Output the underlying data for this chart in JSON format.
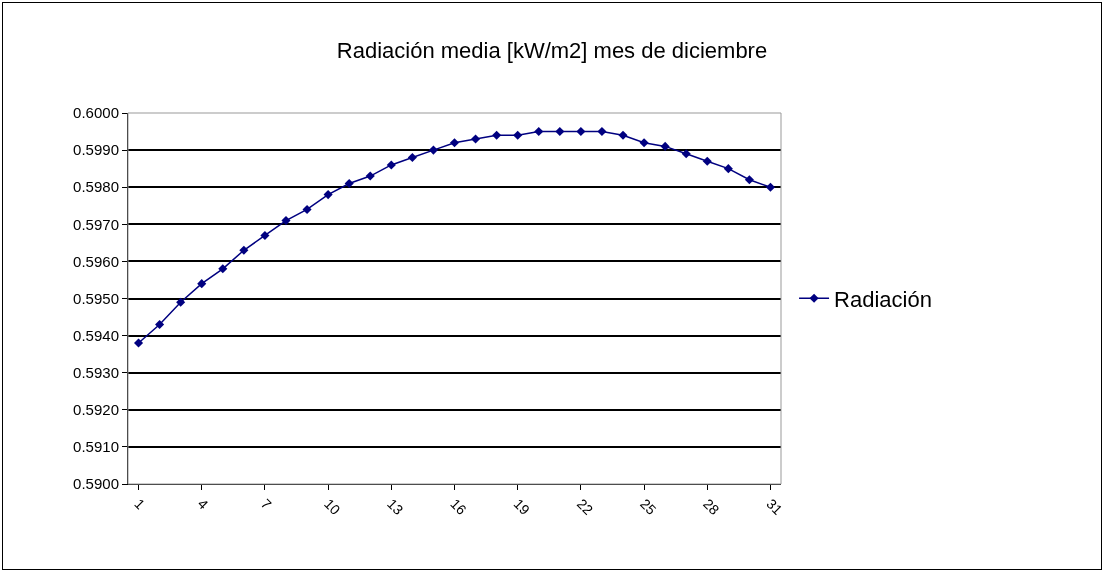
{
  "chart_data": {
    "type": "line",
    "title": "Radiación media [kW/m2] mes de diciembre",
    "categories": [
      "1",
      null,
      null,
      "4",
      null,
      null,
      "7",
      null,
      null,
      "10",
      null,
      null,
      "13",
      null,
      null,
      "16",
      null,
      null,
      "19",
      null,
      null,
      "22",
      null,
      null,
      "25",
      null,
      null,
      "28",
      null,
      null,
      "31"
    ],
    "series": [
      {
        "name": "Radiación",
        "color": "#000080",
        "values": [
          0.5938,
          0.5943,
          0.5949,
          0.5954,
          0.5958,
          0.5963,
          0.5967,
          0.5971,
          0.5974,
          0.5978,
          0.5981,
          0.5983,
          0.5986,
          0.5988,
          0.599,
          0.5992,
          0.5993,
          0.5994,
          0.5994,
          0.5995,
          0.5995,
          0.5995,
          0.5995,
          0.5994,
          0.5992,
          0.5991,
          0.5989,
          0.5987,
          0.5985,
          0.5982,
          0.598
        ]
      }
    ],
    "ylim": [
      0.59,
      0.6
    ],
    "yticks": [
      {
        "value": 0.59,
        "label": "0.5900"
      },
      {
        "value": 0.591,
        "label": "0.5910"
      },
      {
        "value": 0.592,
        "label": "0.5920"
      },
      {
        "value": 0.593,
        "label": "0.5930"
      },
      {
        "value": 0.594,
        "label": "0.5940"
      },
      {
        "value": 0.595,
        "label": "0.5950"
      },
      {
        "value": 0.596,
        "label": "0.5960"
      },
      {
        "value": 0.597,
        "label": "0.5970"
      },
      {
        "value": 0.598,
        "label": "0.5980"
      },
      {
        "value": 0.599,
        "label": "0.5990"
      },
      {
        "value": 0.6,
        "label": "0.6000"
      }
    ],
    "grid": "y",
    "legend": "right",
    "marker": "diamond",
    "line_style": "solid"
  }
}
